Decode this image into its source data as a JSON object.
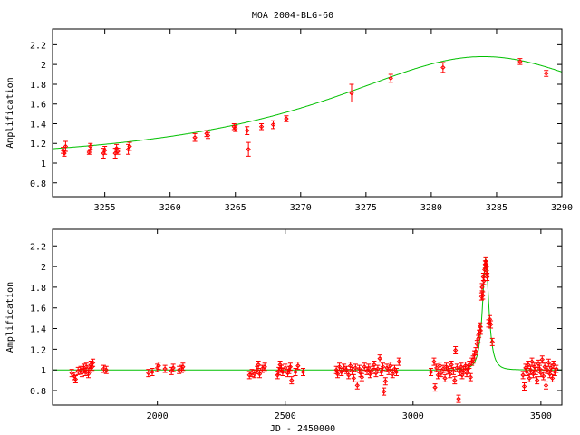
{
  "title": "MOA 2004-BLG-60",
  "colors": {
    "data": "#ff0000",
    "model": "#00c000",
    "axis": "#000000"
  },
  "chart_data": [
    {
      "type": "scatter",
      "title": "MOA 2004-BLG-60",
      "xlabel": "",
      "ylabel": "Amplification",
      "xlim": [
        3251,
        3290
      ],
      "ylim": [
        0.66,
        2.36
      ],
      "xticks": [
        3255,
        3260,
        3265,
        3270,
        3275,
        3280,
        3285,
        3290
      ],
      "yticks": [
        0.8,
        1,
        1.2,
        1.4,
        1.6,
        1.8,
        2,
        2.2
      ],
      "ytick_labels": [
        "0.8",
        "1",
        "1.2",
        "1.4",
        "1.6",
        "1.8",
        "2",
        "2.2"
      ],
      "grid": false,
      "model": {
        "name": "model",
        "t0": 3284,
        "u0": 0.53,
        "tE": 24.5
      },
      "points": [
        [
          3251.8,
          1.13,
          0.03
        ],
        [
          3251.9,
          1.1,
          0.03
        ],
        [
          3252.0,
          1.17,
          0.05
        ],
        [
          3253.8,
          1.11,
          0.02
        ],
        [
          3253.9,
          1.17,
          0.03
        ],
        [
          3254.9,
          1.1,
          0.05
        ],
        [
          3255.0,
          1.13,
          0.04
        ],
        [
          3255.8,
          1.1,
          0.05
        ],
        [
          3255.9,
          1.15,
          0.04
        ],
        [
          3256.0,
          1.12,
          0.03
        ],
        [
          3256.8,
          1.14,
          0.05
        ],
        [
          3256.9,
          1.17,
          0.04
        ],
        [
          3261.9,
          1.26,
          0.04
        ],
        [
          3262.8,
          1.3,
          0.03
        ],
        [
          3262.9,
          1.28,
          0.03
        ],
        [
          3264.9,
          1.37,
          0.03
        ],
        [
          3265.0,
          1.35,
          0.03
        ],
        [
          3265.9,
          1.33,
          0.04
        ],
        [
          3266.0,
          1.14,
          0.07
        ],
        [
          3267.0,
          1.37,
          0.03
        ],
        [
          3267.9,
          1.39,
          0.04
        ],
        [
          3268.9,
          1.45,
          0.03
        ],
        [
          3273.9,
          1.71,
          0.09
        ],
        [
          3276.9,
          1.86,
          0.04
        ],
        [
          3280.9,
          1.97,
          0.05
        ],
        [
          3286.8,
          2.03,
          0.03
        ],
        [
          3288.8,
          1.91,
          0.03
        ]
      ]
    },
    {
      "type": "scatter",
      "title": "",
      "xlabel": "JD - 2450000",
      "ylabel": "Amplification",
      "xlim": [
        1590,
        3582
      ],
      "ylim": [
        0.66,
        2.36
      ],
      "xticks": [
        2000,
        2500,
        3000,
        3500
      ],
      "yticks": [
        0.8,
        1,
        1.2,
        1.4,
        1.6,
        1.8,
        2,
        2.2
      ],
      "ytick_labels": [
        "0.8",
        "1",
        "1.2",
        "1.4",
        "1.6",
        "1.8",
        "2",
        "2.2"
      ],
      "grid": false,
      "model": {
        "name": "model",
        "t0": 3284,
        "u0": 0.53,
        "tE": 24.5
      },
      "default_error": 0.035,
      "points": [
        [
          1665,
          0.97
        ],
        [
          1675,
          0.94
        ],
        [
          1680,
          0.91
        ],
        [
          1690,
          0.99
        ],
        [
          1700,
          1.0
        ],
        [
          1705,
          0.97
        ],
        [
          1712,
          1.02
        ],
        [
          1718,
          0.98
        ],
        [
          1722,
          1.03
        ],
        [
          1730,
          0.96
        ],
        [
          1735,
          1.01
        ],
        [
          1740,
          1.05
        ],
        [
          1745,
          1.03
        ],
        [
          1748,
          1.07
        ],
        [
          1790,
          1.01
        ],
        [
          1800,
          1.0
        ],
        [
          1965,
          0.97
        ],
        [
          1980,
          0.98
        ],
        [
          2000,
          1.02
        ],
        [
          2005,
          1.04
        ],
        [
          2030,
          1.01
        ],
        [
          2055,
          0.99
        ],
        [
          2062,
          1.02
        ],
        [
          2085,
          1.0
        ],
        [
          2095,
          1.01
        ],
        [
          2100,
          1.03
        ],
        [
          2360,
          0.95
        ],
        [
          2370,
          0.97
        ],
        [
          2380,
          0.96
        ],
        [
          2390,
          1.0
        ],
        [
          2395,
          1.05
        ],
        [
          2400,
          0.96
        ],
        [
          2410,
          1.01
        ],
        [
          2420,
          1.03
        ],
        [
          2470,
          0.95
        ],
        [
          2475,
          0.99
        ],
        [
          2480,
          1.05
        ],
        [
          2485,
          1.01
        ],
        [
          2490,
          0.98
        ],
        [
          2500,
          1.02
        ],
        [
          2510,
          0.97
        ],
        [
          2515,
          1.0
        ],
        [
          2520,
          1.03
        ],
        [
          2525,
          0.9
        ],
        [
          2540,
          0.98
        ],
        [
          2550,
          1.04
        ],
        [
          2570,
          0.98
        ],
        [
          2700,
          1.0
        ],
        [
          2705,
          0.96
        ],
        [
          2712,
          1.03
        ],
        [
          2720,
          0.98
        ],
        [
          2730,
          1.02
        ],
        [
          2740,
          1.0
        ],
        [
          2748,
          0.95
        ],
        [
          2755,
          1.04
        ],
        [
          2762,
          0.99
        ],
        [
          2768,
          0.92
        ],
        [
          2775,
          1.02
        ],
        [
          2782,
          0.85
        ],
        [
          2790,
          1.01
        ],
        [
          2795,
          0.97
        ],
        [
          2800,
          0.93
        ],
        [
          2810,
          1.03
        ],
        [
          2820,
          0.99
        ],
        [
          2826,
          1.02
        ],
        [
          2832,
          0.96
        ],
        [
          2840,
          1.0
        ],
        [
          2848,
          1.05
        ],
        [
          2855,
          0.97
        ],
        [
          2862,
          1.01
        ],
        [
          2870,
          1.11
        ],
        [
          2876,
          0.98
        ],
        [
          2882,
          1.03
        ],
        [
          2886,
          0.79
        ],
        [
          2892,
          0.89
        ],
        [
          2898,
          1.02
        ],
        [
          2905,
          0.99
        ],
        [
          2912,
          1.04
        ],
        [
          2920,
          0.96
        ],
        [
          2928,
          1.01
        ],
        [
          2935,
          0.98
        ],
        [
          2945,
          1.08
        ],
        [
          3070,
          0.98
        ],
        [
          3082,
          1.08
        ],
        [
          3086,
          0.83
        ],
        [
          3092,
          1.02
        ],
        [
          3098,
          0.95
        ],
        [
          3105,
          1.04
        ],
        [
          3110,
          0.97
        ],
        [
          3118,
          1.01
        ],
        [
          3125,
          0.92
        ],
        [
          3130,
          1.03
        ],
        [
          3138,
          1.0
        ],
        [
          3145,
          0.96
        ],
        [
          3150,
          1.05
        ],
        [
          3158,
          0.99
        ],
        [
          3163,
          0.9
        ],
        [
          3166,
          1.19
        ],
        [
          3172,
          1.02
        ],
        [
          3178,
          0.72
        ],
        [
          3182,
          0.98
        ],
        [
          3188,
          1.03
        ],
        [
          3192,
          0.95
        ],
        [
          3198,
          1.0
        ],
        [
          3205,
          1.04
        ],
        [
          3210,
          0.97
        ],
        [
          3215,
          1.01
        ],
        [
          3220,
          1.05
        ],
        [
          3225,
          0.93
        ],
        [
          3230,
          1.08
        ],
        [
          3235,
          1.1
        ],
        [
          3240,
          1.15
        ],
        [
          3245,
          1.18
        ],
        [
          3250,
          1.25
        ],
        [
          3255,
          1.3
        ],
        [
          3258,
          1.35
        ],
        [
          3262,
          1.42
        ],
        [
          3264,
          1.38
        ],
        [
          3268,
          1.71
        ],
        [
          3270,
          1.8
        ],
        [
          3273,
          1.72
        ],
        [
          3275,
          1.9
        ],
        [
          3277,
          1.86
        ],
        [
          3280,
          1.97
        ],
        [
          3282,
          2.02
        ],
        [
          3284,
          2.05
        ],
        [
          3286,
          2.02
        ],
        [
          3288,
          1.96
        ],
        [
          3290,
          1.9
        ],
        [
          3295,
          1.45
        ],
        [
          3300,
          1.49
        ],
        [
          3304,
          1.44
        ],
        [
          3310,
          1.27
        ],
        [
          3430,
          0.95
        ],
        [
          3435,
          0.84
        ],
        [
          3440,
          1.02
        ],
        [
          3445,
          0.98
        ],
        [
          3450,
          1.05
        ],
        [
          3455,
          0.92
        ],
        [
          3460,
          1.0
        ],
        [
          3465,
          1.08
        ],
        [
          3470,
          0.96
        ],
        [
          3475,
          1.03
        ],
        [
          3480,
          0.99
        ],
        [
          3485,
          0.9
        ],
        [
          3490,
          1.06
        ],
        [
          3495,
          1.01
        ],
        [
          3500,
          0.97
        ],
        [
          3505,
          1.1
        ],
        [
          3510,
          0.94
        ],
        [
          3515,
          1.03
        ],
        [
          3520,
          0.85
        ],
        [
          3525,
          1.0
        ],
        [
          3530,
          1.07
        ],
        [
          3535,
          0.96
        ],
        [
          3540,
          1.02
        ],
        [
          3545,
          0.92
        ],
        [
          3550,
          1.05
        ],
        [
          3555,
          0.98
        ],
        [
          3560,
          1.01
        ]
      ]
    }
  ]
}
